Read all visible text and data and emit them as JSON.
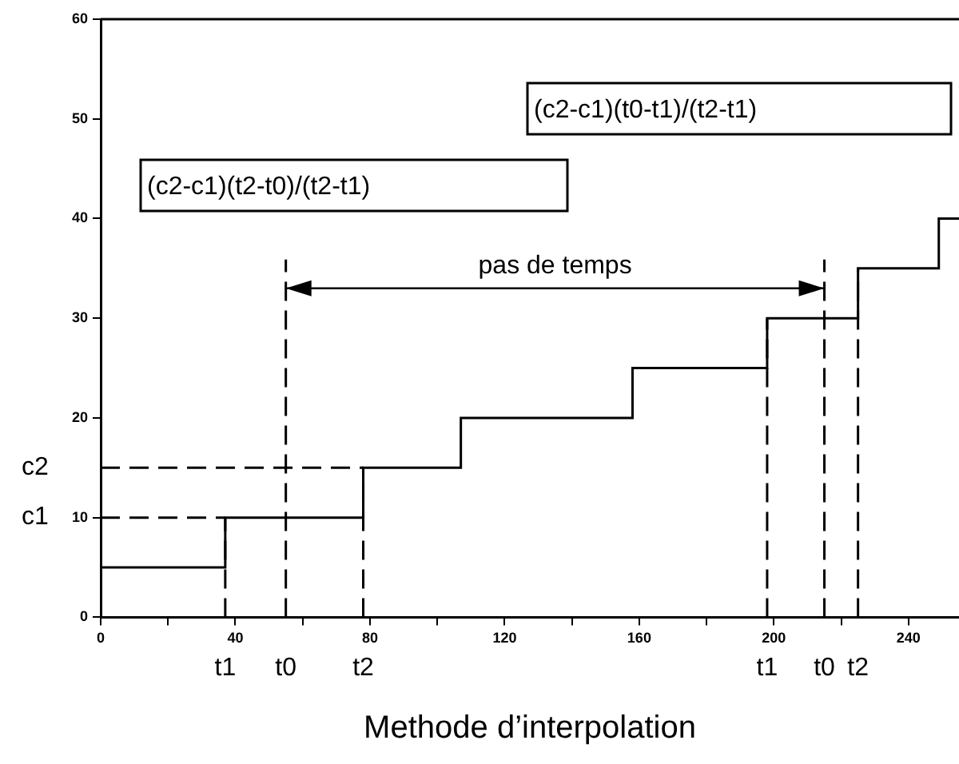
{
  "chart_data": {
    "type": "step",
    "xlabel": "Methode d’interpolation",
    "x": [
      0,
      37,
      78,
      107,
      158,
      198,
      225,
      249,
      255
    ],
    "values": [
      5,
      10,
      15,
      20,
      25,
      30,
      35,
      40,
      40
    ],
    "color": "#000000",
    "xlim": [
      0,
      255
    ],
    "ylim": [
      0,
      60
    ],
    "xticks": [
      0,
      {
        "value": 20,
        "label": null
      },
      40,
      {
        "value": 60,
        "label": null
      },
      80,
      {
        "value": 100,
        "label": null
      },
      120,
      {
        "value": 140,
        "label": null
      },
      160,
      {
        "value": 180,
        "label": null
      },
      200,
      {
        "value": 220,
        "label": null
      },
      240
    ],
    "yticks": [
      0,
      10,
      20,
      30,
      40,
      50,
      60
    ],
    "grid": false,
    "legend": false,
    "marker": "none",
    "line_style": "solid",
    "ref_lines": [
      {
        "axis": "y",
        "value": 10,
        "label": "c1",
        "line_style": "dashed",
        "color": "#000000"
      },
      {
        "axis": "y",
        "value": 15,
        "label": "c2",
        "line_style": "dashed",
        "color": "#000000"
      },
      {
        "axis": "x",
        "value": 37,
        "label": "t1",
        "line_style": "dashed",
        "color": "#000000"
      },
      {
        "axis": "x",
        "value": 55,
        "label": "t0",
        "line_style": "dashed",
        "color": "#000000"
      },
      {
        "axis": "x",
        "value": 78,
        "label": "t2",
        "line_style": "dashed",
        "color": "#000000"
      },
      {
        "axis": "x",
        "value": 198,
        "label": "t1",
        "line_style": "dashed",
        "color": "#000000"
      },
      {
        "axis": "x",
        "value": 215,
        "label": "t0",
        "line_style": "dashed",
        "color": "#000000"
      },
      {
        "axis": "x",
        "value": 225,
        "label": "t2",
        "line_style": "dashed",
        "color": "#000000"
      }
    ],
    "annotations": [
      "(c2-c1)(t2-t0)/(t2-t1)",
      "(c2-c1)(t0-t1)/(t2-t1)",
      "pas de temps"
    ]
  }
}
